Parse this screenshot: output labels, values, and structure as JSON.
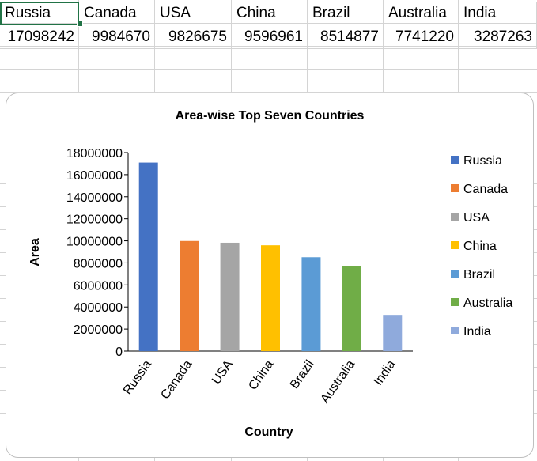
{
  "sheet": {
    "headers": [
      "Russia",
      "Canada",
      "USA",
      "China",
      "Brazil",
      "Australia",
      "India"
    ],
    "values": [
      "17098242",
      "9984670",
      "9826675",
      "9596961",
      "8514877",
      "7741220",
      "3287263"
    ]
  },
  "chart_data": {
    "type": "bar",
    "title": "Area-wise Top Seven Countries",
    "xlabel": "Country",
    "ylabel": "Area",
    "categories": [
      "Russia",
      "Canada",
      "USA",
      "China",
      "Brazil",
      "Australia",
      "India"
    ],
    "values": [
      17098242,
      9984670,
      9826675,
      9596961,
      8514877,
      7741220,
      3287263
    ],
    "colors": [
      "#4472C4",
      "#ED7D31",
      "#A5A5A5",
      "#FFC000",
      "#5B9BD5",
      "#70AD47",
      "#8FAADC"
    ],
    "ylim": [
      0,
      18000000
    ],
    "yticks": [
      "0",
      "2000000",
      "4000000",
      "6000000",
      "8000000",
      "10000000",
      "12000000",
      "14000000",
      "16000000",
      "18000000"
    ],
    "legend": [
      "Russia",
      "Canada",
      "USA",
      "China",
      "Brazil",
      "Australia",
      "India"
    ],
    "legend_position": "right",
    "grid": false
  }
}
